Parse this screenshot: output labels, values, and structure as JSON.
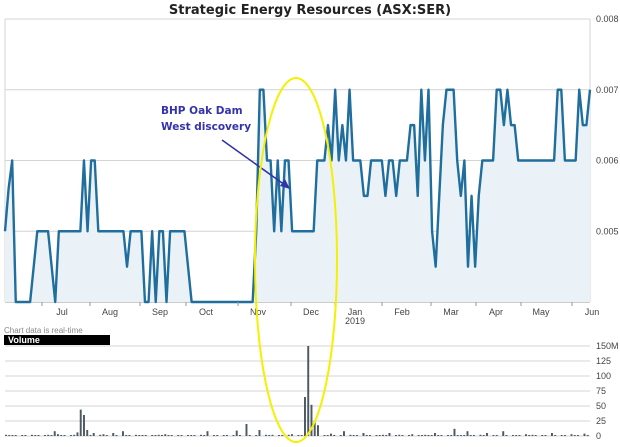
{
  "chart_data": [
    {
      "type": "line",
      "title": "Strategic Energy Resources (ASX:SER)",
      "y_ticks": [
        "0.008",
        "0.007",
        "0.006",
        "0.005"
      ],
      "ylim": [
        0.004,
        0.008
      ],
      "x_labels": [
        "Jul",
        "Aug",
        "Sep",
        "Oct",
        "Nov",
        "Dec",
        "Jan",
        "Feb",
        "Mar",
        "Apr",
        "May",
        "Jun"
      ],
      "x_sublabel": "2019",
      "grid": true,
      "area_fill": true,
      "series": [
        {
          "values": [
            0.005,
            0.0056,
            0.006,
            0.004,
            0.004,
            0.004,
            0.004,
            0.004,
            0.0045,
            0.005,
            0.005,
            0.005,
            0.005,
            0.0045,
            0.004,
            0.005,
            0.005,
            0.005,
            0.005,
            0.005,
            0.005,
            0.005,
            0.006,
            0.005,
            0.006,
            0.006,
            0.005,
            0.005,
            0.005,
            0.005,
            0.005,
            0.005,
            0.005,
            0.005,
            0.0045,
            0.005,
            0.005,
            0.005,
            0.005,
            0.004,
            0.004,
            0.005,
            0.004,
            0.005,
            0.005,
            0.004,
            0.005,
            0.005,
            0.005,
            0.005,
            0.005,
            0.0045,
            0.004,
            0.004,
            0.004,
            0.004,
            0.004,
            0.004,
            0.004,
            0.004,
            0.004,
            0.004,
            0.004,
            0.004,
            0.004,
            0.004,
            0.004,
            0.004,
            0.004,
            0.004,
            0.005,
            0.007,
            0.007,
            0.006,
            0.006,
            0.005,
            0.006,
            0.005,
            0.006,
            0.006,
            0.005,
            0.005,
            0.005,
            0.005,
            0.005,
            0.005,
            0.005,
            0.006,
            0.006,
            0.006,
            0.0065,
            0.006,
            0.007,
            0.006,
            0.0065,
            0.006,
            0.007,
            0.006,
            0.006,
            0.006,
            0.0055,
            0.0055,
            0.006,
            0.006,
            0.006,
            0.006,
            0.0055,
            0.006,
            0.006,
            0.0055,
            0.006,
            0.006,
            0.006,
            0.0065,
            0.0065,
            0.0055,
            0.007,
            0.006,
            0.007,
            0.005,
            0.0045,
            0.0055,
            0.0065,
            0.007,
            0.007,
            0.007,
            0.006,
            0.0055,
            0.006,
            0.0045,
            0.0055,
            0.0045,
            0.0055,
            0.006,
            0.006,
            0.006,
            0.006,
            0.007,
            0.007,
            0.0065,
            0.007,
            0.0065,
            0.0065,
            0.006,
            0.006,
            0.006,
            0.006,
            0.006,
            0.006,
            0.006,
            0.006,
            0.006,
            0.006,
            0.006,
            0.007,
            0.007,
            0.006,
            0.006,
            0.006,
            0.006,
            0.007,
            0.0065,
            0.0065,
            0.007
          ]
        }
      ]
    },
    {
      "type": "bar",
      "title": "Volume",
      "y_ticks": [
        "150M",
        "125",
        "100",
        "75",
        "50",
        "25",
        "0"
      ],
      "ylim": [
        0,
        150
      ],
      "unit": "M",
      "values": [
        2,
        1,
        1,
        1,
        0,
        1,
        1,
        0,
        2,
        1,
        1,
        0,
        1,
        2,
        1,
        1,
        0,
        1,
        1,
        0,
        1,
        2,
        1,
        1,
        0,
        1,
        1,
        1,
        0,
        2,
        1,
        1,
        0,
        1,
        1,
        0,
        1,
        1,
        1,
        0,
        2,
        1,
        1,
        1,
        0,
        1,
        1,
        2,
        1,
        0,
        1,
        1,
        0,
        1,
        1,
        0,
        1,
        1,
        1,
        0,
        2,
        1,
        1,
        0,
        1,
        1,
        0,
        1,
        1,
        0,
        1,
        1,
        1,
        0,
        1,
        1,
        0,
        1,
        1,
        0,
        2,
        1,
        2,
        0,
        1,
        1,
        0,
        2,
        1,
        0,
        1,
        1,
        2,
        1,
        0,
        1,
        1,
        0,
        1,
        1,
        2,
        1,
        0,
        1,
        1,
        0,
        2,
        1,
        1,
        0,
        2,
        1,
        1,
        0,
        1,
        1,
        2,
        1,
        1,
        0,
        1,
        2,
        1,
        0,
        1,
        1,
        0,
        1,
        1,
        2,
        1,
        1,
        0,
        1,
        1,
        0,
        1,
        1,
        2,
        1,
        1,
        1,
        0,
        1,
        1,
        0,
        2,
        1,
        1,
        0,
        1,
        1,
        0,
        1,
        1,
        0,
        1,
        1,
        1,
        0,
        1,
        1,
        2,
        1,
        0,
        1,
        1,
        0,
        1,
        1,
        0,
        1,
        1,
        0,
        2,
        1,
        1,
        0,
        1,
        1
      ],
      "highlights": [
        [
          15,
          8
        ],
        [
          16,
          3
        ],
        [
          22,
          6
        ],
        [
          23,
          44
        ],
        [
          24,
          35
        ],
        [
          25,
          10
        ],
        [
          27,
          5
        ],
        [
          30,
          3
        ],
        [
          33,
          5
        ],
        [
          36,
          8
        ],
        [
          49,
          3
        ],
        [
          62,
          8
        ],
        [
          71,
          9
        ],
        [
          74,
          20
        ],
        [
          78,
          10
        ],
        [
          88,
          3
        ],
        [
          92,
          65
        ],
        [
          93,
          150
        ],
        [
          94,
          52
        ],
        [
          95,
          25
        ],
        [
          96,
          18
        ],
        [
          100,
          4
        ],
        [
          104,
          8
        ],
        [
          110,
          5
        ],
        [
          118,
          5
        ],
        [
          125,
          3
        ],
        [
          132,
          5
        ],
        [
          138,
          12
        ],
        [
          142,
          8
        ],
        [
          148,
          5
        ],
        [
          153,
          8
        ],
        [
          160,
          3
        ],
        [
          168,
          5
        ],
        [
          174,
          3
        ],
        [
          178,
          4
        ]
      ]
    }
  ],
  "annotation": {
    "lines": [
      "BHP Oak Dam",
      "West discovery"
    ],
    "color": "#3333aa"
  },
  "note": "Chart data is real-time",
  "volume_label": "Volume",
  "colors": {
    "line": "#1f6e9e",
    "area": "#eaf2f8",
    "highlight": "#f5f000",
    "volume_bar": "#4d5964",
    "grid": "#d4d4d4"
  }
}
